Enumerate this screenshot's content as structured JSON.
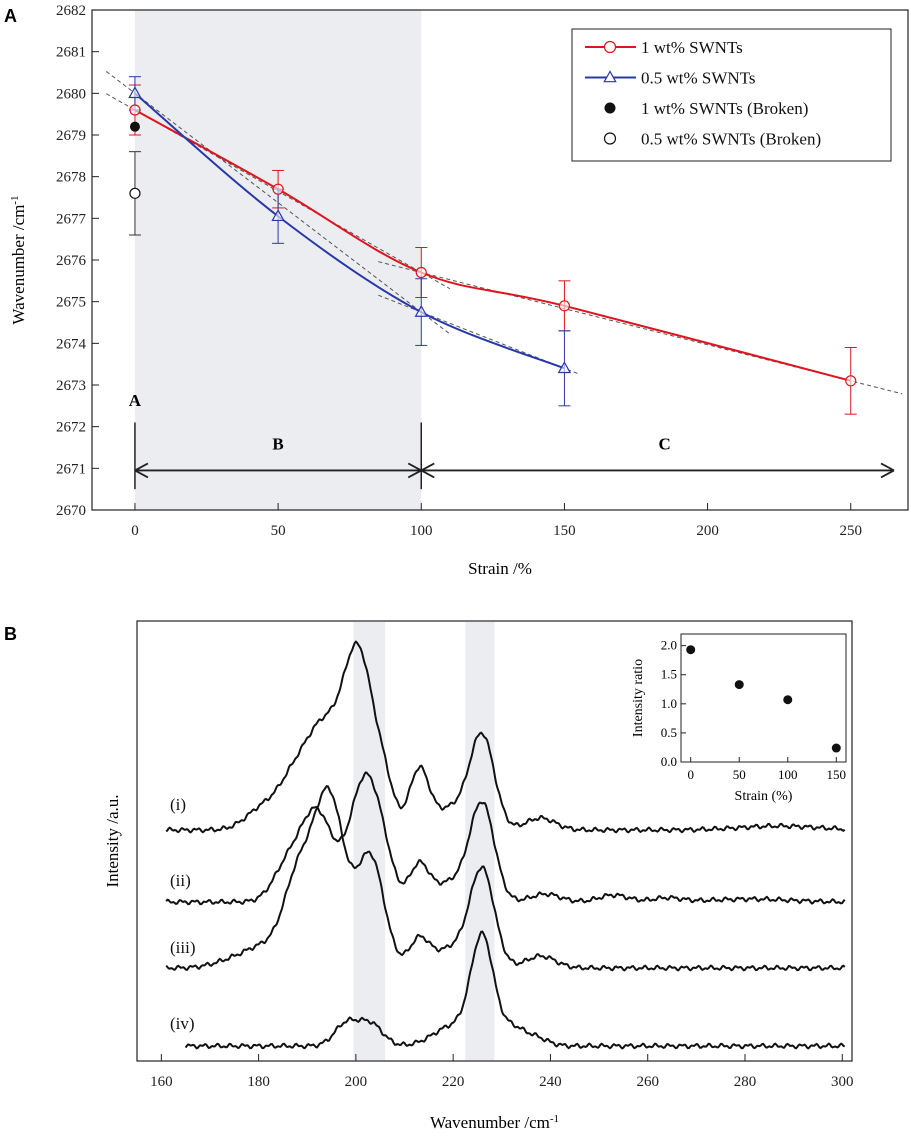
{
  "panels": {
    "a": "A",
    "b": "B"
  },
  "colors": {
    "red": "#e0141e",
    "blue": "#2838a8",
    "shade": "#ecedf1",
    "dash": "#555555"
  },
  "chart_data": [
    {
      "id": "A",
      "type": "line",
      "xlabel": "Strain /%",
      "ylabel": "Wavenumber /cm",
      "ylabel_sup": "-1",
      "xlim": [
        -15,
        270
      ],
      "ylim": [
        2670,
        2682
      ],
      "xticks": [
        0,
        50,
        100,
        150,
        200,
        250
      ],
      "yticks": [
        2670,
        2671,
        2672,
        2673,
        2674,
        2675,
        2676,
        2677,
        2678,
        2679,
        2680,
        2681,
        2682
      ],
      "shaded_region_x": [
        0,
        100
      ],
      "regions": [
        {
          "label": "A",
          "x": 0
        },
        {
          "label": "B",
          "from": 0,
          "to": 100
        },
        {
          "label": "C",
          "from": 100,
          "to": 270
        }
      ],
      "legend": [
        {
          "label": "1 wt% SWNTs",
          "marker": "circle-open",
          "line": true,
          "color": "#e0141e"
        },
        {
          "label": "0.5 wt% SWNTs",
          "marker": "triangle-open",
          "line": true,
          "color": "#2838a8"
        },
        {
          "label": "1 wt% SWNTs (Broken)",
          "marker": "circle-filled",
          "line": false,
          "color": "#111111"
        },
        {
          "label": "0.5 wt% SWNTs (Broken)",
          "marker": "circle-open",
          "line": false,
          "color": "#111111"
        }
      ],
      "series": [
        {
          "name": "1 wt% SWNTs",
          "x": [
            0,
            50,
            100,
            150,
            250
          ],
          "y": [
            2679.6,
            2677.7,
            2675.7,
            2674.9,
            2673.1
          ],
          "err": [
            0.6,
            0.45,
            0.6,
            0.6,
            0.8
          ]
        },
        {
          "name": "0.5 wt% SWNTs",
          "x": [
            0,
            50,
            100,
            150
          ],
          "y": [
            2680.0,
            2677.05,
            2674.75,
            2673.4
          ],
          "err": [
            0.4,
            0.65,
            0.8,
            0.9
          ]
        },
        {
          "name": "1 wt% SWNTs (Broken)",
          "x": [
            0
          ],
          "y": [
            2679.2
          ],
          "err": [
            0
          ]
        },
        {
          "name": "0.5 wt% SWNTs (Broken)",
          "x": [
            0
          ],
          "y": [
            2677.6
          ],
          "err": [
            1.0
          ]
        }
      ]
    },
    {
      "id": "B",
      "type": "line",
      "xlabel": "Wavenumber /cm",
      "xlabel_sup": "-1",
      "ylabel": "Intensity /a.u.",
      "xlim": [
        155,
        302
      ],
      "xticks": [
        160,
        180,
        200,
        220,
        240,
        260,
        280,
        300
      ],
      "shaded_bands": [
        [
          199.5,
          206
        ],
        [
          222.5,
          228.5
        ]
      ],
      "spectra_labels": [
        "(i)",
        "(ii)",
        "(iii)",
        "(iv)"
      ],
      "inset": {
        "type": "scatter",
        "xlabel": "Strain (%)",
        "ylabel": "Intensity ratio",
        "xlim": [
          -10,
          160
        ],
        "ylim": [
          0,
          2.2
        ],
        "xticks": [
          0,
          50,
          100,
          150
        ],
        "yticks": [
          0.0,
          0.5,
          1.0,
          1.5,
          2.0
        ],
        "x": [
          0,
          50,
          100,
          150
        ],
        "y": [
          1.93,
          1.33,
          1.07,
          0.24
        ]
      }
    }
  ]
}
